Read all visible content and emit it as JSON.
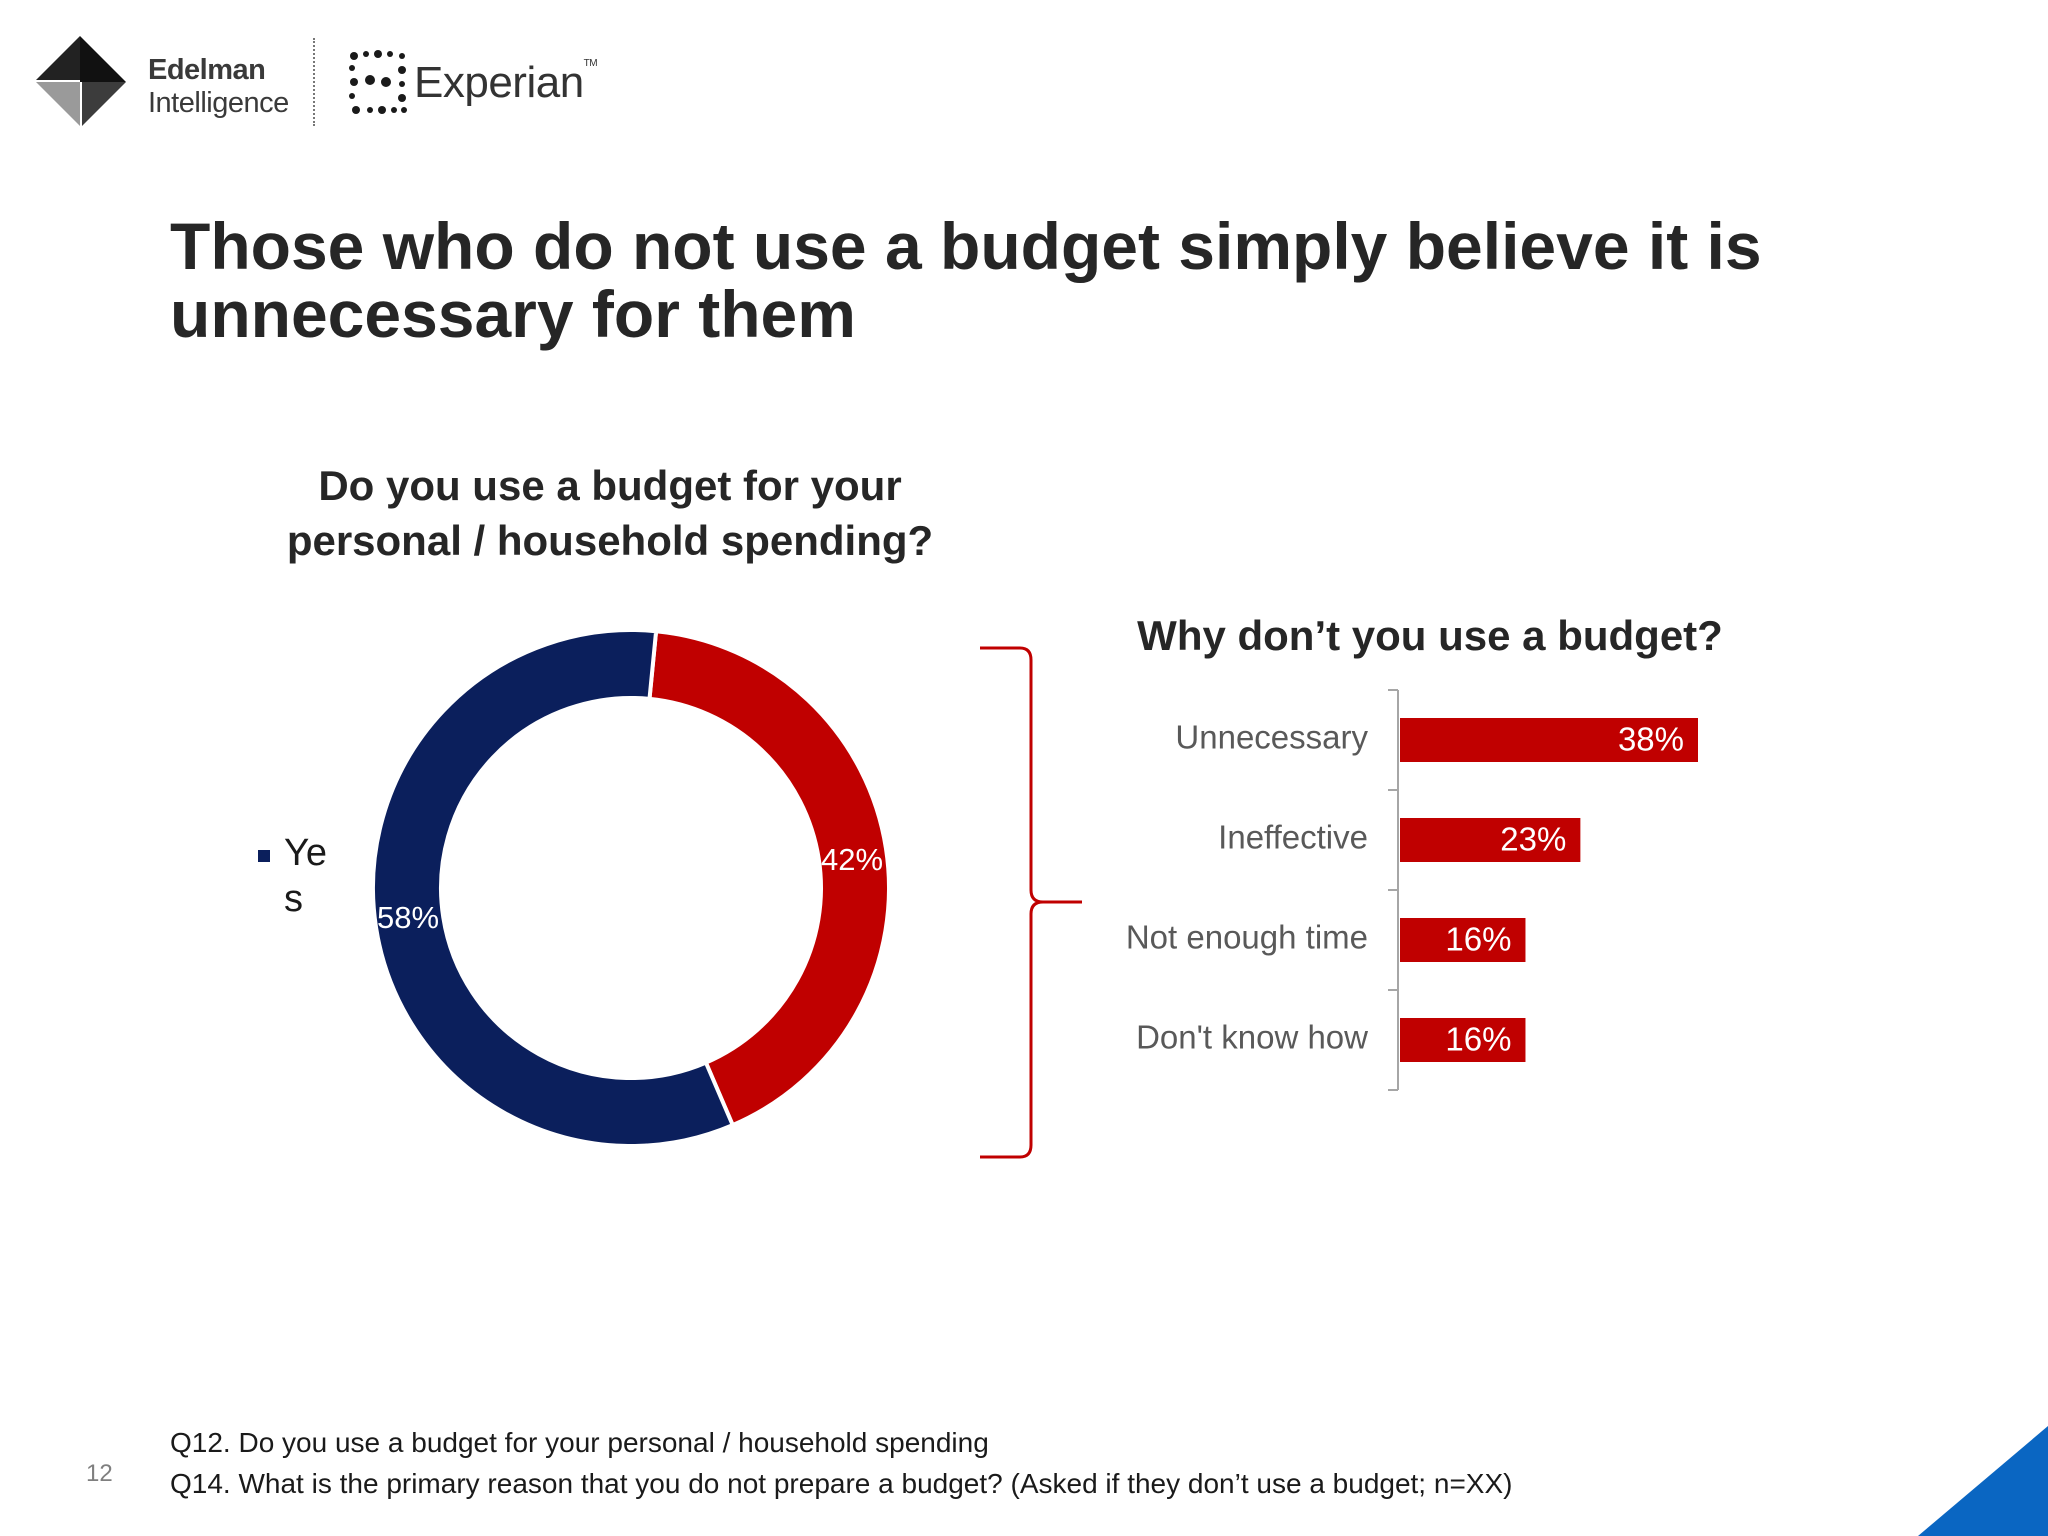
{
  "logos": {
    "edelman_line1": "Edelman",
    "edelman_line2": "Intelligence",
    "experian": "Experian"
  },
  "headline": "Those who do not use a budget simply believe it is unnecessary for them",
  "footer": {
    "q12": "Q12. Do you use a budget for your personal / household spending",
    "q14": "Q14. What is the primary reason that you do not prepare a budget? (Asked if they don’t use a budget; n=XX)",
    "page_number": "12"
  },
  "colors": {
    "navy": "#0b1f5c",
    "red": "#c00000",
    "corner_blue": "#0a66c2"
  },
  "chart_data": [
    {
      "type": "pie",
      "style": "donut",
      "title": "Do you use a budget for your personal / household spending?",
      "labels": [
        "Yes",
        ""
      ],
      "values": [
        58,
        42
      ],
      "data_labels": [
        "58%",
        "42%"
      ],
      "colors": [
        "#0b1f5c",
        "#c00000"
      ],
      "legend": {
        "entries": [
          "Yes"
        ],
        "placement": "left"
      }
    },
    {
      "type": "bar",
      "orientation": "horizontal",
      "title": "Why don’t you use a budget?",
      "categories": [
        "Unnecessary",
        "Ineffective",
        "Not enough time",
        "Don't know how"
      ],
      "values": [
        38,
        23,
        16,
        16
      ],
      "data_labels": [
        "38%",
        "23%",
        "16%",
        "16%"
      ],
      "unit": "%",
      "color": "#c00000",
      "xlim": [
        0,
        100
      ],
      "grid": false
    }
  ]
}
